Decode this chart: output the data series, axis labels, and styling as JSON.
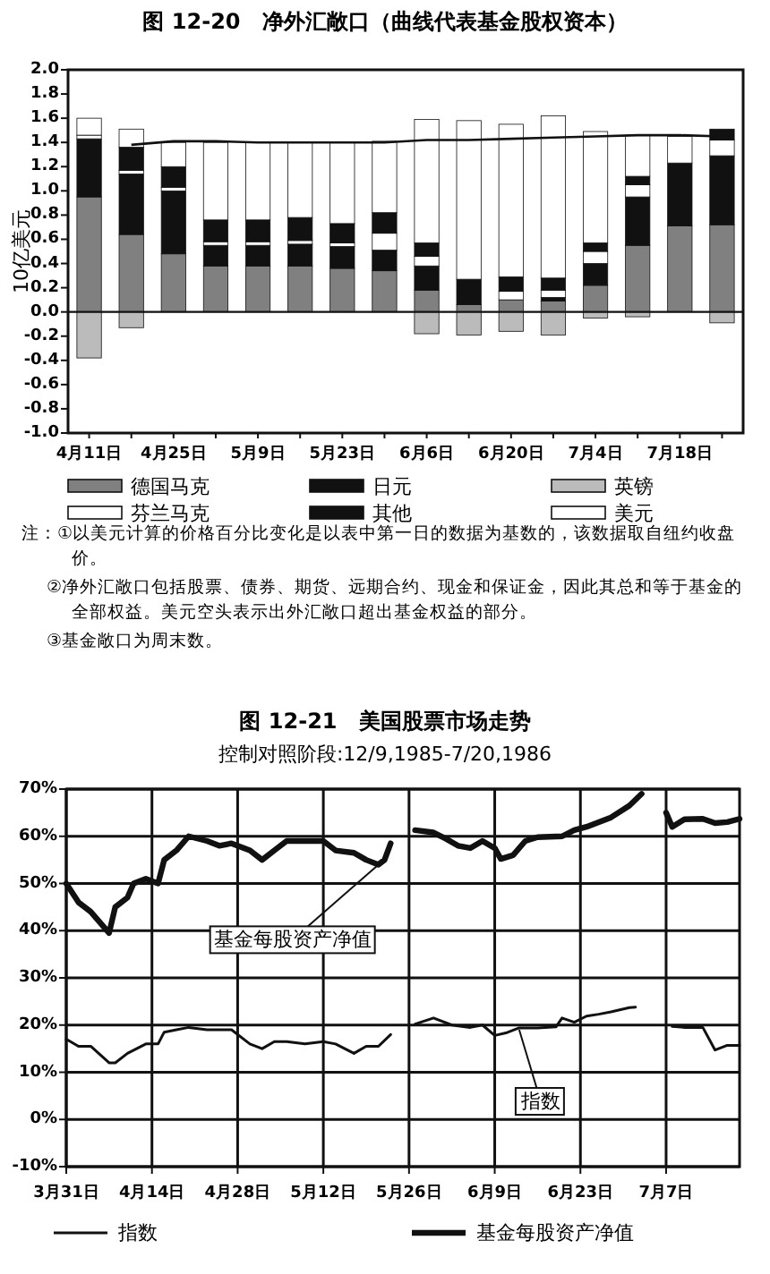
{
  "chart_data": [
    {
      "type": "bar",
      "title": "图 12-20　净外汇敞口（曲线代表基金股权资本）",
      "ylabel": "10亿美元",
      "stacked": true,
      "legend": "bottom",
      "categories": [
        "4月11日",
        null,
        "4月25日",
        null,
        "5月9日",
        null,
        "5月23日",
        null,
        "6月6日",
        null,
        "6月20日",
        null,
        "7月4日",
        null,
        "7月18日",
        null
      ],
      "ylim": [
        -1,
        2
      ],
      "yticks": [
        {
          "value": -1,
          "label": "-1.0"
        },
        {
          "value": -0.8,
          "label": "-0.8"
        },
        {
          "value": -0.6,
          "label": "-0.6"
        },
        {
          "value": -0.4,
          "label": "-0.4"
        },
        {
          "value": -0.2,
          "label": "-0.2"
        },
        {
          "value": 0,
          "label": "0.0"
        },
        {
          "value": 0.2,
          "label": "0.2"
        },
        {
          "value": 0.4,
          "label": "0.4"
        },
        {
          "value": 0.6,
          "label": "0.6"
        },
        {
          "value": 0.8,
          "label": "0.8"
        },
        {
          "value": 1,
          "label": "1.0"
        },
        {
          "value": 1.2,
          "label": "1.2"
        },
        {
          "value": 1.4,
          "label": "1.4"
        },
        {
          "value": 1.6,
          "label": "1.6"
        },
        {
          "value": 1.8,
          "label": "1.8"
        },
        {
          "value": 2,
          "label": "2.0"
        }
      ],
      "series": [
        {
          "name": "德国马克",
          "color": "#808080",
          "values": [
            0.95,
            0.64,
            0.48,
            0.38,
            0.38,
            0.38,
            0.36,
            0.34,
            0.18,
            0.06,
            0.1,
            0.09,
            0.22,
            0.55,
            0.71,
            0.72
          ]
        },
        {
          "name": "日元",
          "color": "#111111",
          "values": [
            0.48,
            0.5,
            0.52,
            0.17,
            0.17,
            0.18,
            0.18,
            0.17,
            0.2,
            0.21,
            null,
            0.03,
            0.18,
            0.4,
            0.52,
            0.57
          ]
        },
        {
          "name": "英镑",
          "color": "#bbbbbb",
          "values": [
            -0.38,
            -0.13,
            null,
            null,
            null,
            null,
            null,
            null,
            -0.18,
            -0.19,
            -0.16,
            -0.19,
            -0.05,
            -0.04,
            null,
            -0.09
          ]
        },
        {
          "name": "芬兰马克",
          "color": "#ffffff",
          "values": [
            0.03,
            0.03,
            0.03,
            0.03,
            0.03,
            0.03,
            0.03,
            0.14,
            0.08,
            null,
            0.07,
            0.06,
            0.1,
            0.1,
            null,
            0.13
          ]
        },
        {
          "name": "其他",
          "color": "#111111",
          "values": [
            null,
            0.19,
            0.17,
            0.18,
            0.18,
            0.19,
            0.16,
            0.17,
            0.11,
            null,
            0.12,
            0.1,
            0.07,
            0.07,
            null,
            0.09
          ]
        },
        {
          "name": "美元",
          "color": "#ffffff",
          "values": [
            0.14,
            0.15,
            0.2,
            0.64,
            0.64,
            0.62,
            0.67,
            0.59,
            1.02,
            1.31,
            1.26,
            1.34,
            0.92,
            0.34,
            0.22,
            null
          ]
        },
        {
          "type": "line",
          "color": "#111111",
          "values": [
            null,
            1.38,
            1.41,
            1.41,
            1.4,
            1.4,
            1.4,
            1.4,
            1.42,
            1.42,
            1.43,
            1.44,
            1.45,
            1.46,
            1.46,
            1.45
          ]
        }
      ],
      "annotations": [
        "注：①以美元计算的价格百分比变化是以表中第一日的数据为基数的，该数据取自纽约收盘价。",
        "②净外汇敞口包括股票、债券、期货、远期合约、现金和保证金，因此其总和等于基金的全部权益。美元空头表示出外汇敞口超出基金权益的部分。",
        "③基金敞口为周末数。"
      ]
    },
    {
      "type": "line",
      "title": "图 12-21　美国股票市场走势",
      "subtitle": "控制对照阶段:12/9,1985-7/20,1986",
      "grid": true,
      "legend": "bottom",
      "xlim": [
        "--03-31",
        "--07-19"
      ],
      "xticks": [
        {
          "value": "--03-31",
          "label": "3月31日"
        },
        {
          "value": "--04-14",
          "label": "4月14日"
        },
        {
          "value": "--04-28",
          "label": "4月28日"
        },
        {
          "value": "--05-12",
          "label": "5月12日"
        },
        {
          "value": "--05-26",
          "label": "5月26日"
        },
        {
          "value": "--06-09",
          "label": "6月9日"
        },
        {
          "value": "--06-23",
          "label": "6月23日"
        },
        {
          "value": "--07-07",
          "label": "7月7日"
        }
      ],
      "ylim": [
        -10,
        70
      ],
      "yticks": [
        {
          "value": -10,
          "label": "-10%"
        },
        {
          "value": 0,
          "label": "0%"
        },
        {
          "value": 10,
          "label": "10%"
        },
        {
          "value": 20,
          "label": "20%"
        },
        {
          "value": 30,
          "label": "30%"
        },
        {
          "value": 40,
          "label": "40%"
        },
        {
          "value": 50,
          "label": "50%"
        },
        {
          "value": 60,
          "label": "60%"
        },
        {
          "value": 70,
          "label": "70%"
        }
      ],
      "series": [
        {
          "name": "指数",
          "color": "#111111",
          "x": [
            "--03-31",
            "--04-02",
            "--04-04",
            "--04-07",
            "--04-08",
            "--04-10",
            "--04-13",
            "--04-15",
            "--04-16",
            "--04-18",
            "--04-20",
            "--04-23",
            "--04-25",
            "--04-27",
            "--04-30",
            "--05-02",
            "--05-04",
            "--05-06",
            "--05-09",
            "--05-12",
            "--05-14",
            "--05-17",
            "--05-19",
            "--05-21",
            "--05-23",
            "--05-27",
            "--05-30",
            "--06-02",
            "--06-05",
            "--06-07",
            "--06-09",
            "--06-11",
            "--06-13",
            "--06-16",
            "--06-19",
            "--06-20",
            "--06-22",
            "--06-24",
            "--06-26",
            "--06-28",
            "--07-01",
            "--07-02",
            "--07-08",
            "--07-10",
            "--07-13",
            "--07-15",
            "--07-17",
            "--07-19"
          ],
          "values": [
            17,
            15.5,
            15.5,
            12,
            12,
            14,
            16,
            16,
            18.5,
            19,
            19.5,
            19,
            19,
            19,
            16,
            15,
            16.5,
            16.5,
            16,
            16.5,
            16,
            14,
            15.5,
            15.5,
            18,
            20.2,
            21.5,
            20,
            19.5,
            20,
            17.8,
            18.4,
            19.4,
            19.4,
            19.6,
            21.5,
            20.6,
            21.9,
            22.3,
            22.8,
            23.7,
            23.8,
            19.7,
            19.5,
            19.5,
            14.7,
            15.7,
            15.7
          ]
        },
        {
          "name": "基金每股资产净值",
          "color": "#111111",
          "x": [
            "--03-31",
            "--04-02",
            "--04-04",
            "--04-07",
            "--04-08",
            "--04-10",
            "--04-11",
            "--04-13",
            "--04-15",
            "--04-16",
            "--04-18",
            "--04-20",
            "--04-23",
            "--04-25",
            "--04-27",
            "--04-30",
            "--05-02",
            "--05-04",
            "--05-06",
            "--05-09",
            "--05-12",
            "--05-14",
            "--05-17",
            "--05-19",
            "--05-21",
            "--05-22",
            "--05-23",
            "--05-27",
            "--05-30",
            "--06-01",
            "--06-03",
            "--06-05",
            "--06-07",
            "--06-09",
            "--06-10",
            "--06-12",
            "--06-14",
            "--06-16",
            "--06-18",
            "--06-20",
            "--06-22",
            "--06-24",
            "--06-26",
            "--06-28",
            "--07-01",
            "--07-03",
            "--07-07",
            "--07-08",
            "--07-10",
            "--07-13",
            "--07-15",
            "--07-17",
            "--07-19"
          ],
          "values": [
            50,
            46,
            44,
            39.5,
            45,
            47,
            50,
            51,
            50,
            55,
            57,
            60,
            59,
            58,
            58.5,
            57,
            55,
            57,
            59,
            59,
            59,
            57,
            56.5,
            55,
            54,
            55,
            58.5,
            61.3,
            60.8,
            59.5,
            58,
            57.5,
            59,
            57.5,
            55.2,
            56,
            59,
            59.8,
            59.9,
            60,
            61.3,
            62,
            63,
            64,
            66.5,
            69,
            65,
            62,
            63.6,
            63.7,
            62.8,
            63,
            63.7
          ]
        }
      ],
      "annotations": [
        {
          "text": "基金每股资产净值",
          "x": "--05-21",
          "y": 54
        },
        {
          "text": "指数",
          "x": "--06-13",
          "y": 19
        }
      ]
    }
  ]
}
